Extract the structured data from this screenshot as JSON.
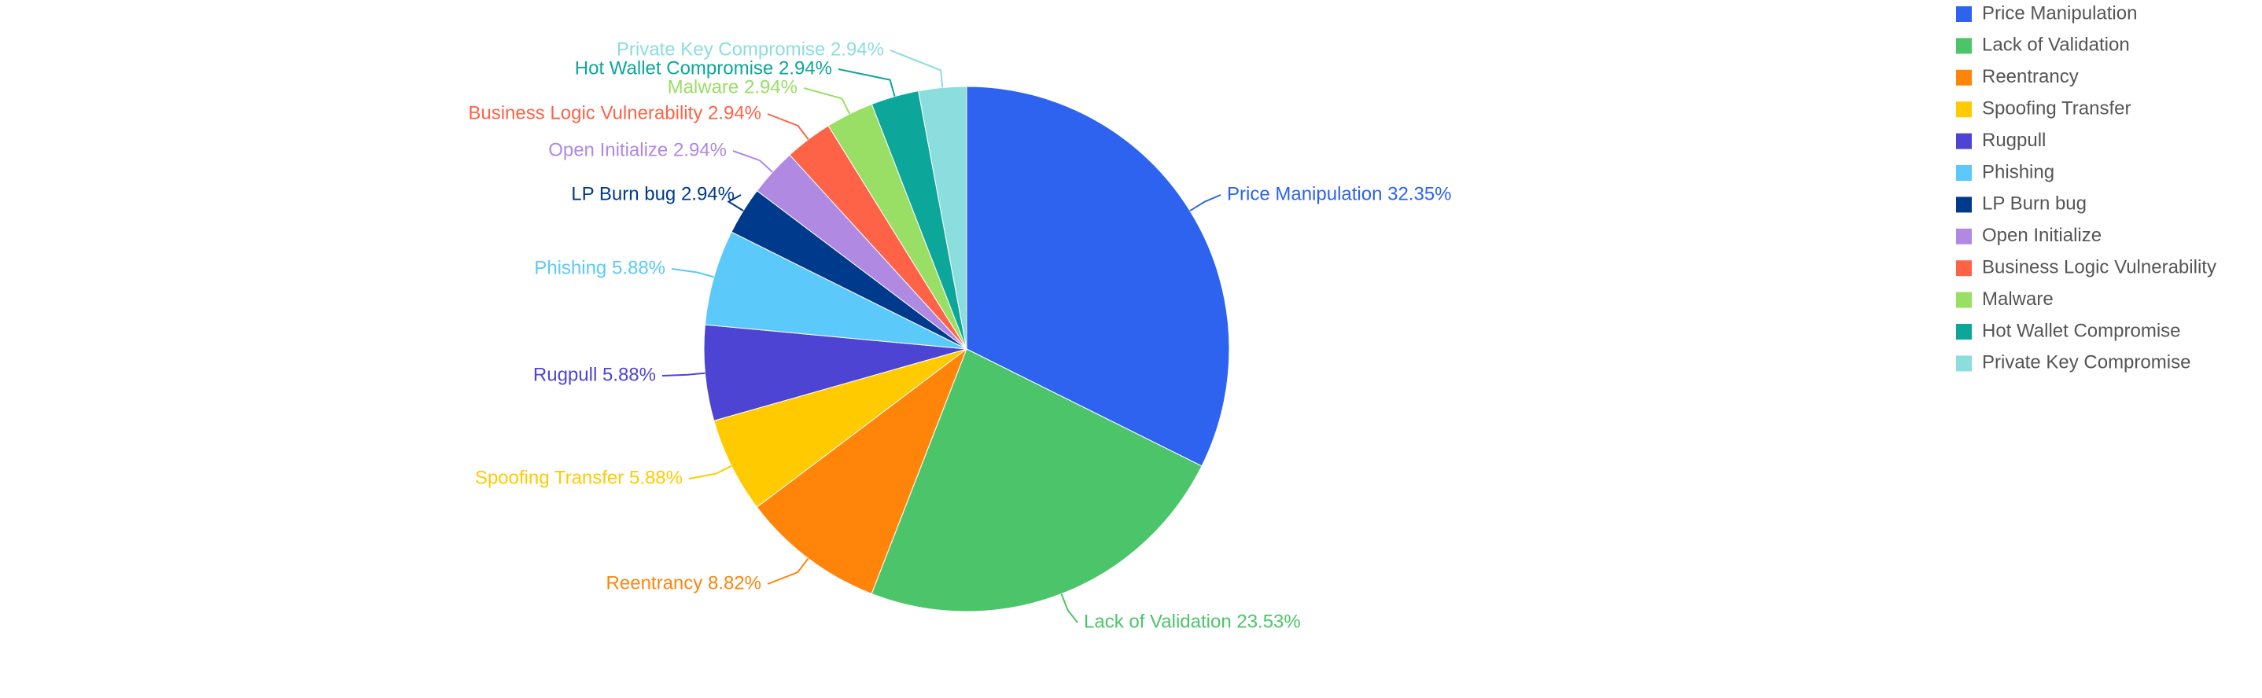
{
  "chart_data": {
    "type": "pie",
    "title": "",
    "slices": [
      {
        "name": "Price Manipulation",
        "value": 32.35,
        "label": "Price Manipulation 32.35%",
        "color": "#2E63F0"
      },
      {
        "name": "Lack of Validation",
        "value": 23.53,
        "label": "Lack of Validation 23.53%",
        "color": "#4CC56A"
      },
      {
        "name": "Reentrancy",
        "value": 8.82,
        "label": "Reentrancy 8.82%",
        "color": "#FF850A"
      },
      {
        "name": "Spoofing Transfer",
        "value": 5.88,
        "label": "Spoofing Transfer 5.88%",
        "color": "#FFCB00"
      },
      {
        "name": "Rugpull",
        "value": 5.88,
        "label": "Rugpull 5.88%",
        "color": "#4E44D3"
      },
      {
        "name": "Phishing",
        "value": 5.88,
        "label": "Phishing 5.88%",
        "color": "#5BC9FA"
      },
      {
        "name": "LP Burn bug",
        "value": 2.94,
        "label": "LP Burn bug 2.94%",
        "color": "#003A8C"
      },
      {
        "name": "Open Initialize",
        "value": 2.94,
        "label": "Open Initialize 2.94%",
        "color": "#B089E3"
      },
      {
        "name": "Business Logic Vulnerability",
        "value": 2.94,
        "label": "Business Logic Vulnerability 2.94%",
        "color": "#FF6347"
      },
      {
        "name": "Malware",
        "value": 2.94,
        "label": "Malware 2.94%",
        "color": "#99DE65"
      },
      {
        "name": "Hot Wallet Compromise",
        "value": 2.94,
        "label": "Hot Wallet Compromise 2.94%",
        "color": "#0DA69B"
      },
      {
        "name": "Private Key Compromise",
        "value": 2.94,
        "label": "Private Key Compromise 2.94%",
        "color": "#8CDDDE"
      }
    ],
    "legend": {
      "placement": "top-right",
      "items": [
        "Price Manipulation",
        "Lack of Validation",
        "Reentrancy",
        "Spoofing Transfer",
        "Rugpull",
        "Phishing",
        "LP Burn bug",
        "Open Initialize",
        "Business Logic Vulnerability",
        "Malware",
        "Hot Wallet Compromise",
        "Private Key Compromise"
      ]
    }
  }
}
